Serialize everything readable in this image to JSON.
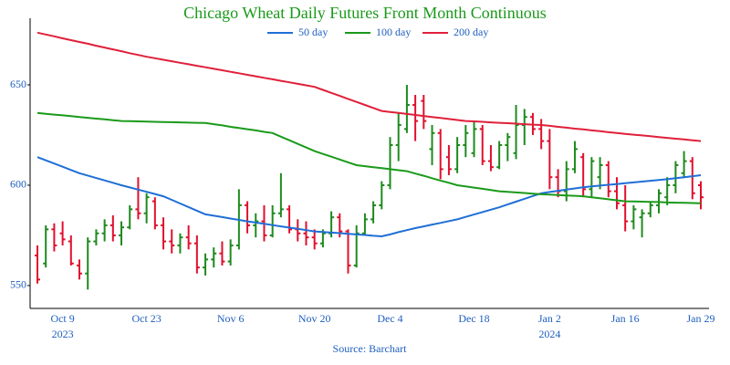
{
  "chart_data": {
    "type": "ohlc",
    "title": "Chicago Wheat Daily Futures Front Month Continuous",
    "source": "Source: Barchart",
    "title_color": "#1a9a1a",
    "label_color": "#1f5fbf",
    "up_color": "#1e8a1e",
    "down_color": "#e0102f",
    "categories": [
      null,
      null,
      null,
      "Oct 9",
      null,
      null,
      null,
      null,
      null,
      null,
      null,
      null,
      null,
      "Oct 23",
      null,
      null,
      null,
      null,
      null,
      null,
      null,
      null,
      null,
      "Nov 6",
      null,
      null,
      null,
      null,
      null,
      null,
      null,
      null,
      null,
      "Nov 20",
      null,
      null,
      null,
      null,
      null,
      null,
      null,
      null,
      "Dec 4",
      null,
      null,
      null,
      null,
      null,
      null,
      null,
      null,
      null,
      "Dec 18",
      null,
      null,
      null,
      null,
      null,
      null,
      null,
      null,
      "Jan 2",
      null,
      null,
      null,
      null,
      null,
      null,
      null,
      null,
      "Jan 16",
      null,
      null,
      null,
      null,
      null,
      null,
      null,
      null,
      "Jan 29"
    ],
    "category_years": [
      null,
      null,
      null,
      "2023",
      null,
      null,
      null,
      null,
      null,
      null,
      null,
      null,
      null,
      null,
      null,
      null,
      null,
      null,
      null,
      null,
      null,
      null,
      null,
      null,
      null,
      null,
      null,
      null,
      null,
      null,
      null,
      null,
      null,
      null,
      null,
      null,
      null,
      null,
      null,
      null,
      null,
      null,
      null,
      null,
      null,
      null,
      null,
      null,
      null,
      null,
      null,
      null,
      null,
      null,
      null,
      null,
      null,
      null,
      null,
      null,
      null,
      "2024",
      null,
      null,
      null,
      null,
      null,
      null,
      null,
      null,
      null,
      null,
      null,
      null,
      null,
      null,
      null,
      null,
      null,
      null
    ],
    "open": [
      565,
      561,
      578,
      576,
      572,
      560,
      556,
      572,
      576,
      580,
      575,
      579,
      588,
      586,
      592,
      580,
      572,
      570,
      574,
      571,
      559,
      563,
      566,
      562,
      570,
      590,
      580,
      582,
      575,
      586,
      588,
      578,
      576,
      574,
      571,
      576,
      584,
      577,
      560,
      576,
      583,
      590,
      600,
      620,
      628,
      640,
      642,
      618,
      626,
      614,
      608,
      620,
      616,
      628,
      612,
      609,
      620,
      616,
      630,
      634,
      628,
      622,
      604,
      597,
      608,
      614,
      598,
      604,
      610,
      597,
      590,
      582,
      584,
      586,
      590,
      594,
      600,
      606,
      612,
      600
    ],
    "high": [
      570,
      580,
      581,
      582,
      575,
      563,
      574,
      578,
      583,
      585,
      582,
      590,
      604,
      596,
      594,
      584,
      578,
      576,
      580,
      575,
      566,
      569,
      572,
      573,
      598,
      592,
      586,
      590,
      590,
      606,
      590,
      583,
      582,
      578,
      578,
      587,
      586,
      578,
      580,
      586,
      592,
      602,
      624,
      636,
      650,
      645,
      645,
      630,
      628,
      620,
      624,
      630,
      632,
      630,
      620,
      622,
      626,
      640,
      638,
      636,
      633,
      628,
      608,
      612,
      622,
      616,
      614,
      614,
      612,
      604,
      600,
      590,
      588,
      592,
      598,
      604,
      612,
      617,
      614,
      602
    ],
    "low": [
      551,
      559,
      567,
      570,
      560,
      553,
      548,
      570,
      572,
      572,
      570,
      578,
      583,
      581,
      578,
      568,
      566,
      566,
      568,
      556,
      555,
      559,
      560,
      560,
      568,
      576,
      574,
      572,
      574,
      584,
      576,
      572,
      570,
      568,
      569,
      574,
      574,
      556,
      559,
      575,
      581,
      588,
      598,
      612,
      626,
      622,
      628,
      610,
      603,
      605,
      606,
      614,
      614,
      610,
      607,
      608,
      612,
      613,
      620,
      625,
      618,
      598,
      594,
      592,
      606,
      594,
      594,
      598,
      594,
      588,
      577,
      578,
      574,
      584,
      586,
      590,
      596,
      604,
      593,
      588
    ],
    "close": [
      553,
      578,
      570,
      573,
      561,
      556,
      572,
      576,
      580,
      575,
      579,
      588,
      586,
      594,
      580,
      572,
      570,
      574,
      571,
      559,
      563,
      566,
      562,
      570,
      590,
      580,
      582,
      575,
      586,
      588,
      578,
      576,
      574,
      571,
      576,
      584,
      577,
      560,
      576,
      583,
      590,
      600,
      620,
      630,
      640,
      632,
      632,
      626,
      608,
      608,
      620,
      626,
      628,
      612,
      609,
      620,
      624,
      630,
      634,
      628,
      622,
      604,
      597,
      608,
      618,
      598,
      612,
      610,
      597,
      591,
      582,
      588,
      586,
      590,
      596,
      600,
      610,
      612,
      596,
      594
    ],
    "series": [
      {
        "name": "50 day",
        "color": "#1f6fd6",
        "values": [
          614,
          612.4,
          610.8,
          609.2,
          607.6,
          606,
          604.8,
          603.6,
          602.4,
          601.2,
          600,
          598.9,
          597.8,
          596.7,
          595.6,
          594.5,
          592.7,
          590.9,
          589.1,
          587.3,
          585.5,
          584.8,
          584.1,
          583.4,
          582.7,
          582,
          581.4,
          580.8,
          580.1,
          579.5,
          578.9,
          578.3,
          577.6,
          577,
          576.7,
          576.4,
          576.1,
          575.8,
          575.5,
          575.2,
          574.8,
          574.5,
          575.5,
          576.6,
          577.6,
          578.6,
          579.5,
          580.4,
          581.2,
          582.1,
          583,
          584.2,
          585.4,
          586.6,
          587.8,
          589,
          590.4,
          591.8,
          593.2,
          594.6,
          596,
          596.6,
          597.2,
          597.8,
          598.4,
          599,
          599.4,
          599.8,
          600.2,
          600.6,
          601,
          601.4,
          601.8,
          602.2,
          602.6,
          603,
          603.5,
          604,
          604.5,
          605
        ]
      },
      {
        "name": "100 day",
        "color": "#1a9a1a",
        "values": [
          636,
          635.6,
          635.2,
          634.8,
          634.4,
          634,
          633.6,
          633.2,
          632.8,
          632.4,
          632,
          631.9,
          631.8,
          631.7,
          631.6,
          631.5,
          631.4,
          631.3,
          631.2,
          631.1,
          631,
          630.4,
          629.8,
          629.1,
          628.5,
          627.9,
          627.3,
          626.6,
          626,
          624.2,
          622.4,
          620.6,
          618.8,
          617,
          615.6,
          614.2,
          612.8,
          611.4,
          610,
          609.5,
          609,
          608.5,
          608,
          607.5,
          607,
          605.8,
          604.7,
          603.5,
          602.3,
          601.2,
          600,
          599.4,
          598.8,
          598.2,
          597.6,
          597,
          596.7,
          596.4,
          596.1,
          595.8,
          595.5,
          595.3,
          595.1,
          594.9,
          594.7,
          594.5,
          594,
          593.5,
          593,
          592.5,
          592,
          591.9,
          591.8,
          591.7,
          591.6,
          591.4,
          591.3,
          591.2,
          591.1,
          591
        ]
      },
      {
        "name": "200 day",
        "color": "#e0203a",
        "values": [
          676,
          675.1,
          674.2,
          673.2,
          672.3,
          671.4,
          670.5,
          669.5,
          668.6,
          667.7,
          666.8,
          665.8,
          664.9,
          664,
          663.3,
          662.5,
          661.8,
          661,
          660.3,
          659.5,
          658.8,
          658,
          657.3,
          656.5,
          655.8,
          655,
          654.3,
          653.5,
          652.8,
          652,
          651.3,
          650.5,
          649.8,
          649,
          647.5,
          646,
          644.5,
          643,
          641.5,
          640,
          638.5,
          637,
          636.5,
          636,
          635.5,
          635,
          634.5,
          634,
          633.5,
          633,
          632.5,
          632,
          631.8,
          631.6,
          631.3,
          631.1,
          630.9,
          630.7,
          630.4,
          630.2,
          630,
          629.6,
          629.1,
          628.7,
          628.2,
          627.8,
          627.3,
          626.9,
          626.4,
          626,
          625.6,
          625.2,
          624.8,
          624.4,
          624,
          623.6,
          623.2,
          622.8,
          622.4,
          622
        ]
      }
    ],
    "ylim": [
      538.6,
      683.2
    ],
    "yticks": [
      550,
      600,
      650
    ],
    "grid": false
  }
}
